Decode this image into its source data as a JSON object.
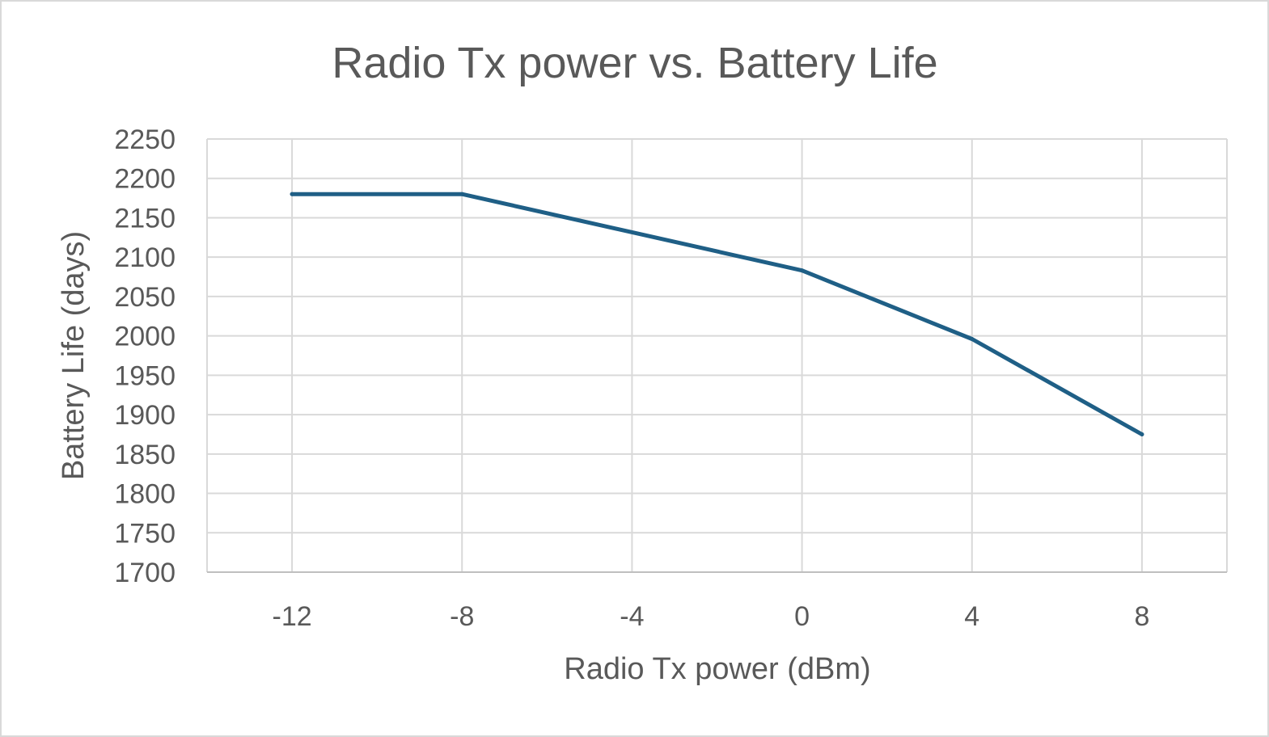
{
  "chart_data": {
    "type": "scatter",
    "title": "Radio Tx power vs. Battery Life",
    "xlabel": "Radio Tx power (dBm)",
    "ylabel": "Battery Life (days)",
    "xlim": [
      -14,
      10
    ],
    "ylim": [
      1700,
      2250
    ],
    "x_ticks": [
      -12,
      -8,
      -4,
      0,
      4,
      8
    ],
    "x_gridlines": [
      -12,
      -8,
      -4,
      0,
      4,
      8,
      10
    ],
    "y_ticks": [
      1700,
      1750,
      1800,
      1850,
      1900,
      1950,
      2000,
      2050,
      2100,
      2150,
      2200,
      2250
    ],
    "grid": true,
    "legend": false,
    "series": [
      {
        "color": "#1f5f86",
        "x": [
          -12,
          -8,
          0,
          4,
          8
        ],
        "y": [
          2180,
          2180,
          2083,
          1996,
          1875
        ]
      }
    ]
  }
}
